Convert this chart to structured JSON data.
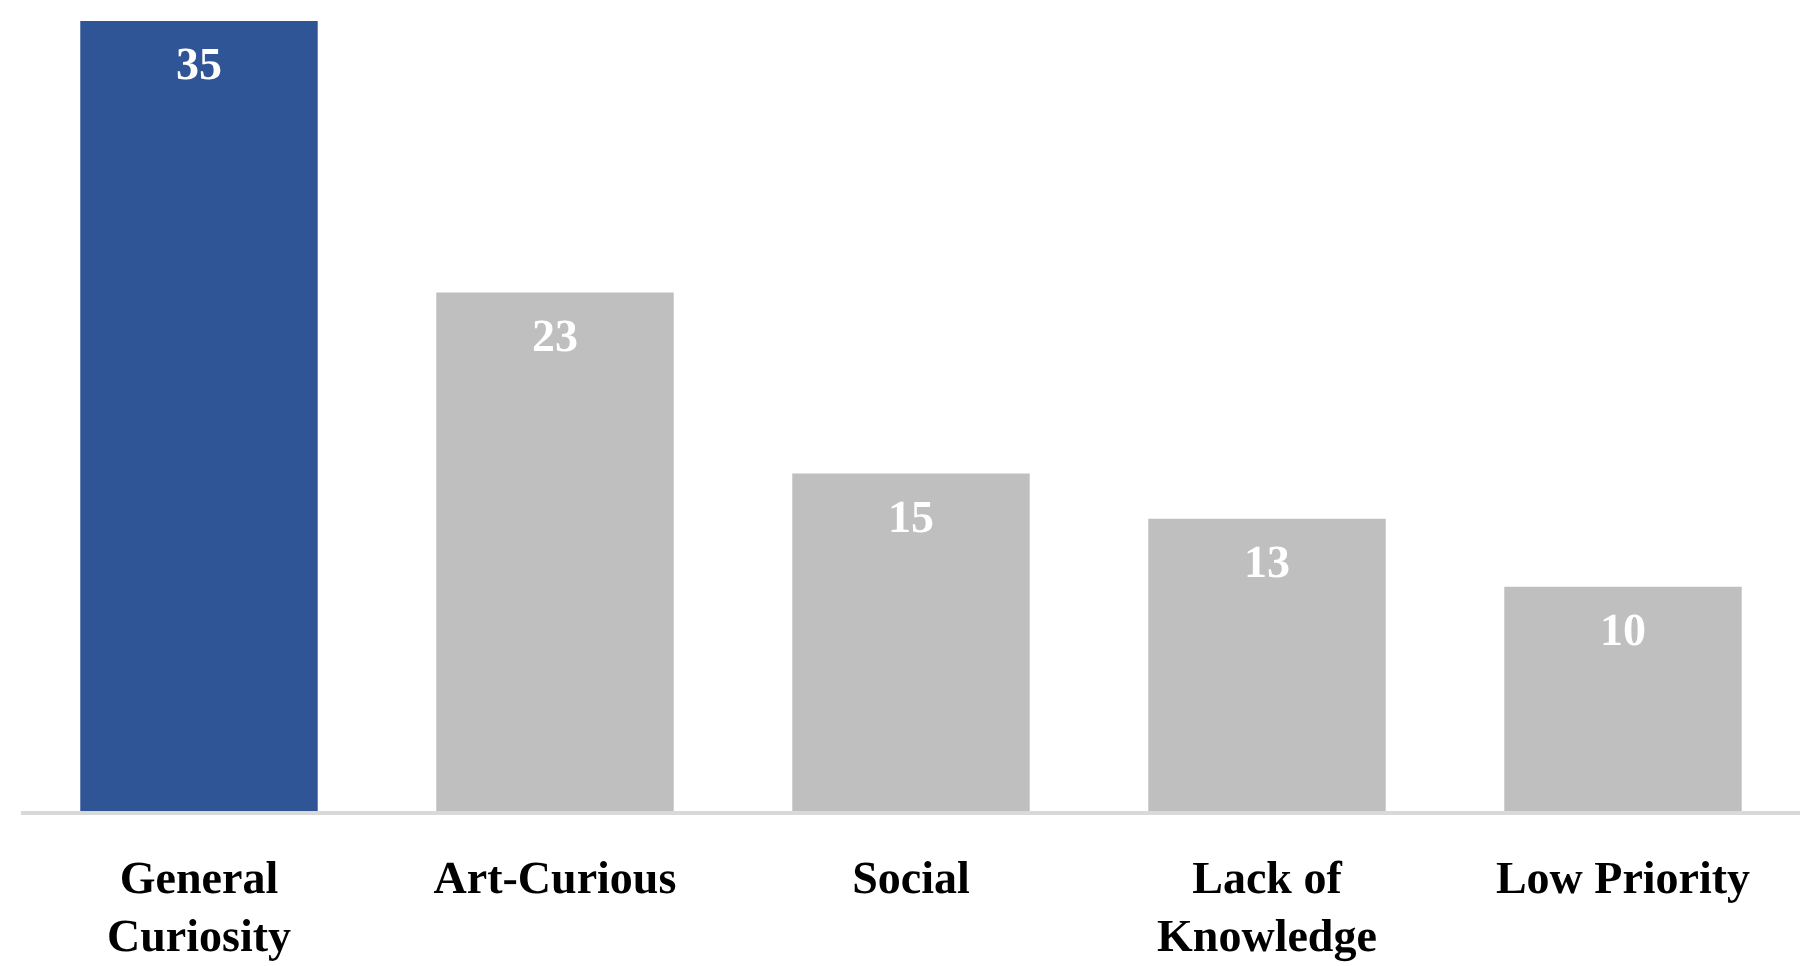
{
  "chart_data": {
    "type": "bar",
    "categories": [
      "General\nCuriosity",
      "Art-Curious",
      "Social",
      "Lack of\nKnowledge",
      "Low Priority"
    ],
    "values": [
      35,
      23,
      15,
      13,
      10
    ],
    "colors": [
      "#2f5597",
      "#bfbfbf",
      "#bfbfbf",
      "#bfbfbf",
      "#bfbfbf"
    ],
    "ylim": [
      0,
      35
    ],
    "data_labels": true,
    "tick_labels": "x",
    "grid": false
  }
}
